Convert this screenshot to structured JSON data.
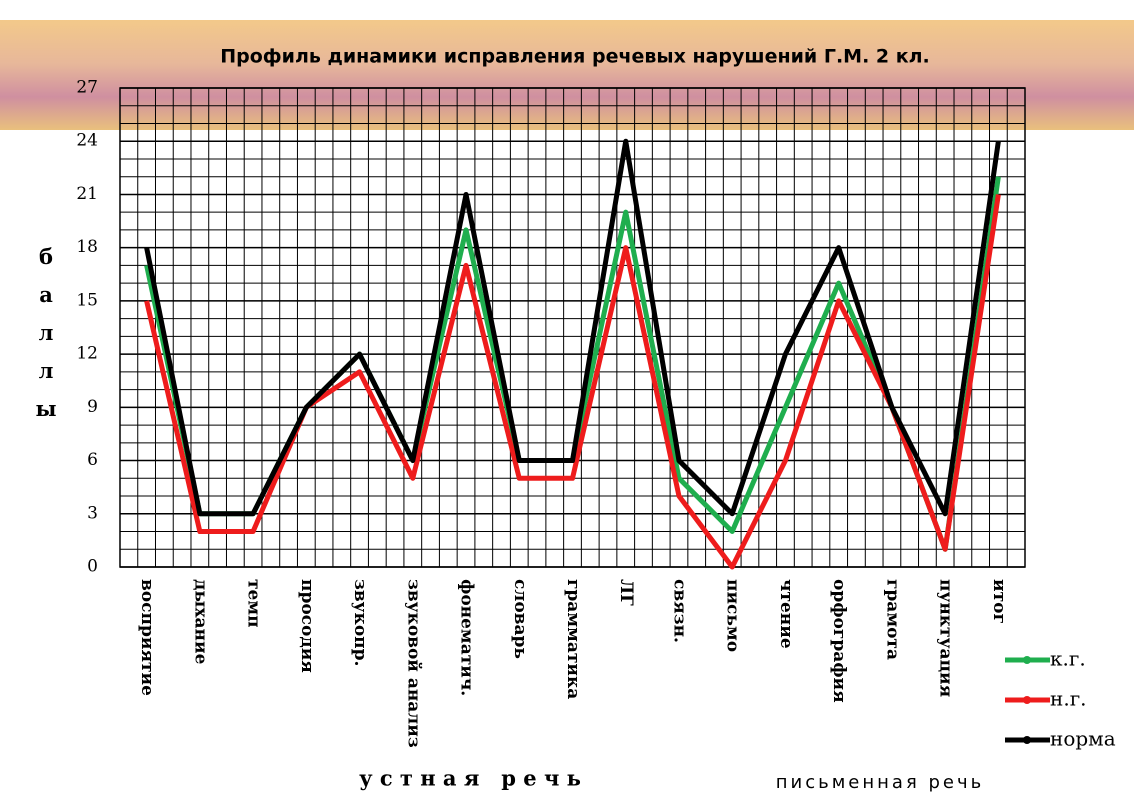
{
  "chart_data": {
    "type": "line",
    "title": "Профиль динамики исправления речевых нарушений Г.М. 2 кл.",
    "y_label": "баллы",
    "categories": [
      "восприятие",
      "дыхание",
      "темп",
      "просодия",
      "звукопр.",
      "звуковой анализ",
      "фонематич.",
      "словарь",
      "грамматика",
      "ЛГ",
      "связн.",
      "письмо",
      "чтение",
      "орфография",
      "грамота",
      "пунктуация",
      "итог"
    ],
    "group_labels": [
      "у с т н а я   р е ч ь",
      "письменная речь"
    ],
    "series": [
      {
        "name": "к.г.",
        "color": "#1fae4e",
        "values": [
          17,
          3,
          3,
          9,
          12,
          6,
          19,
          6,
          6,
          20,
          5,
          2,
          9,
          16,
          9,
          1,
          22
        ]
      },
      {
        "name": "н.г.",
        "color": "#ee1c1c",
        "values": [
          15,
          2,
          2,
          9,
          11,
          5,
          17,
          5,
          5,
          18,
          4,
          0,
          6,
          15,
          9,
          1,
          21
        ]
      },
      {
        "name": "норма",
        "color": "#000000",
        "values": [
          18,
          3,
          3,
          9,
          12,
          6,
          21,
          6,
          6,
          24,
          6,
          3,
          12,
          18,
          9,
          3,
          24
        ]
      }
    ],
    "ylim": [
      0,
      27
    ],
    "yticks": [
      0,
      3,
      6,
      9,
      12,
      15,
      18,
      21,
      24,
      27
    ],
    "grid": true,
    "legend": "right"
  }
}
